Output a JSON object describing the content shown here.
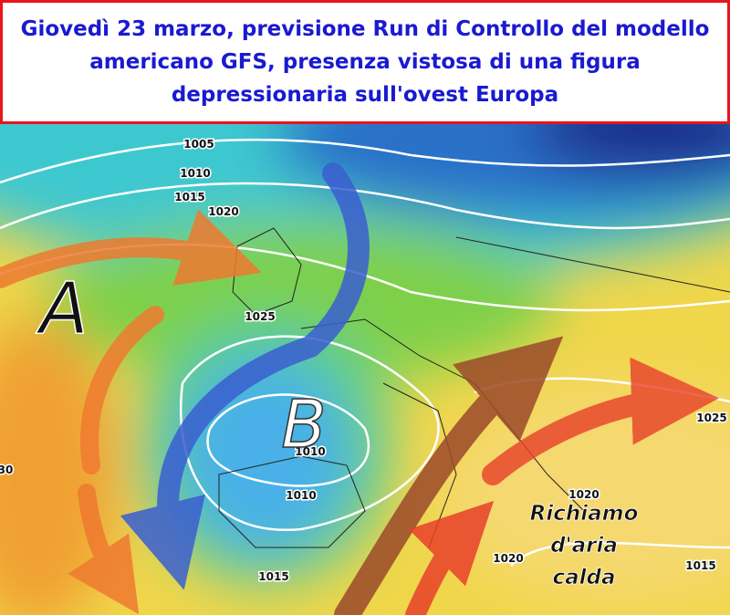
{
  "header": {
    "title_lines": [
      "Giovedì 23 marzo, previsione Run di Controllo del modello",
      "americano GFS, presenza vistosa di una figura",
      "depressionaria sull'ovest Europa"
    ]
  },
  "map": {
    "high_label": "A",
    "low_label": "B",
    "annotation_lines": [
      "Richiamo",
      "d'aria",
      "calda"
    ],
    "isobar_labels": [
      "1005",
      "1010",
      "1015",
      "1020",
      "1025",
      "1010",
      "1010",
      "1015",
      "1020",
      "1020",
      "1015",
      "1025",
      "30"
    ]
  }
}
